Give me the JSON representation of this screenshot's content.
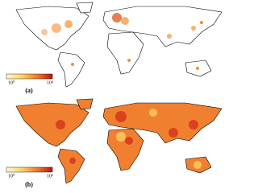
{
  "panels": [
    {
      "label": "(a)",
      "colorbar": {
        "min_label": "10⁰",
        "max_label": "10⁴"
      }
    },
    {
      "label": "(b)",
      "colorbar": {
        "min_label": "10⁰",
        "max_label": "10⁵"
      }
    }
  ]
}
